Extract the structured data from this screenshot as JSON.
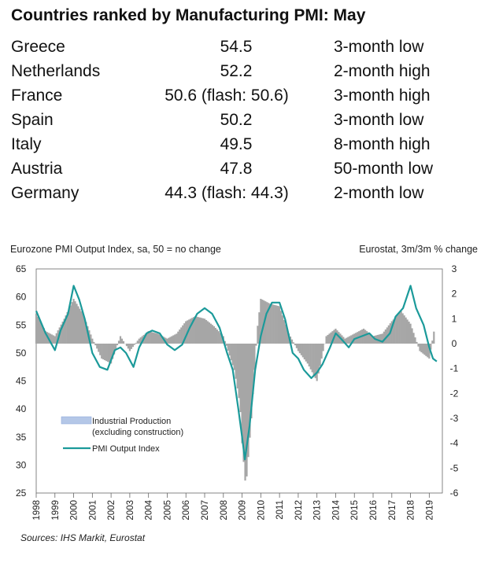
{
  "table": {
    "title": "Countries ranked by Manufacturing PMI: May",
    "rows": [
      {
        "country": "Greece",
        "value": "54.5",
        "change": "3-month low"
      },
      {
        "country": "Netherlands",
        "value": "52.2",
        "change": "2-month high"
      },
      {
        "country": "France",
        "value": "50.6 (flash: 50.6)",
        "change": "3-month high"
      },
      {
        "country": "Spain",
        "value": "50.2",
        "change": "3-month low"
      },
      {
        "country": "Italy",
        "value": "49.5",
        "change": "8-month high"
      },
      {
        "country": "Austria",
        "value": "47.8",
        "change": "50-month low"
      },
      {
        "country": "Germany",
        "value": "44.3 (flash: 44.3)",
        "change": "2-month low"
      }
    ]
  },
  "chart_data": {
    "type": "bar+line",
    "left_axis_title": "Eurozone PMI Output Index, sa, 50 = no change",
    "right_axis_title": "Eurostat, 3m/3m % change",
    "left_ylim": [
      25,
      65
    ],
    "left_ticks": [
      65,
      60,
      55,
      50,
      45,
      40,
      35,
      30,
      25
    ],
    "right_ylim": [
      -6,
      3
    ],
    "right_ticks": [
      3,
      2,
      1,
      0,
      -1,
      -2,
      -3,
      -4,
      -5,
      -6
    ],
    "x_tick_labels": [
      "1998",
      "1999",
      "2000",
      "2001",
      "2002",
      "2003",
      "2004",
      "2005",
      "2006",
      "2007",
      "2008",
      "2009",
      "2010",
      "2011",
      "2012",
      "2013",
      "2014",
      "2015",
      "2016",
      "2017",
      "2018",
      "2019"
    ],
    "legend": [
      "Industrial Production",
      "(excluding construction)",
      "PMI Output Index"
    ],
    "source": "Sources: IHS Markit, Eurostat",
    "colors": {
      "bars": "#a6a6a6",
      "line": "#1b9a9a",
      "legend_bar": "#b4c7e7"
    },
    "series": [
      {
        "name": "PMI Output Index",
        "axis": "left",
        "x": [
          1998.0,
          1998.5,
          1999.0,
          1999.3,
          1999.7,
          2000.0,
          2000.3,
          2000.6,
          2001.0,
          2001.4,
          2001.8,
          2002.2,
          2002.5,
          2002.8,
          2003.2,
          2003.5,
          2003.9,
          2004.2,
          2004.6,
          2005.0,
          2005.4,
          2005.8,
          2006.2,
          2006.6,
          2007.0,
          2007.4,
          2007.8,
          2008.2,
          2008.5,
          2008.8,
          2009.0,
          2009.15,
          2009.4,
          2009.7,
          2010.0,
          2010.3,
          2010.6,
          2011.0,
          2011.3,
          2011.7,
          2012.0,
          2012.3,
          2012.7,
          2013.0,
          2013.3,
          2013.7,
          2014.0,
          2014.3,
          2014.7,
          2015.0,
          2015.4,
          2015.8,
          2016.1,
          2016.5,
          2016.9,
          2017.2,
          2017.6,
          2018.0,
          2018.3,
          2018.7,
          2019.0,
          2019.2,
          2019.4
        ],
        "values": [
          57.5,
          53.5,
          50.5,
          54,
          57,
          62,
          59.5,
          56,
          50,
          47.5,
          47,
          50.5,
          51,
          50,
          47.5,
          51,
          53.5,
          54,
          53.5,
          51.5,
          50.5,
          51.5,
          54.5,
          57,
          58,
          57,
          54.5,
          50,
          47,
          40,
          35,
          31,
          37,
          47,
          53,
          57,
          59,
          59,
          56,
          50,
          49,
          47,
          45.5,
          46.5,
          48,
          51,
          53.5,
          52.5,
          51,
          52.5,
          53,
          53.5,
          52.5,
          52,
          53.5,
          56.5,
          58,
          62,
          58,
          55,
          51,
          49,
          48.5
        ]
      },
      {
        "name": "Industrial Production (excluding construction)",
        "axis": "right",
        "x": [
          1998.0,
          1998.5,
          1999.0,
          1999.5,
          2000.0,
          2000.5,
          2001.0,
          2001.5,
          2002.0,
          2002.5,
          2003.0,
          2003.5,
          2004.0,
          2004.5,
          2005.0,
          2005.5,
          2006.0,
          2006.5,
          2007.0,
          2007.5,
          2008.0,
          2008.3,
          2008.6,
          2008.9,
          2009.0,
          2009.2,
          2009.5,
          2009.8,
          2010.0,
          2010.5,
          2011.0,
          2011.5,
          2012.0,
          2012.5,
          2013.0,
          2013.5,
          2014.0,
          2014.5,
          2015.0,
          2015.5,
          2016.0,
          2016.5,
          2017.0,
          2017.5,
          2018.0,
          2018.5,
          2019.0,
          2019.3
        ],
        "values": [
          1.2,
          0.5,
          0.3,
          1.0,
          1.8,
          1.2,
          0.2,
          -0.6,
          -0.8,
          0.3,
          -0.3,
          0.2,
          0.5,
          0.4,
          0.2,
          0.4,
          0.9,
          1.1,
          1.0,
          0.7,
          0.3,
          -0.4,
          -1.1,
          -2.5,
          -4.0,
          -5.8,
          -3.0,
          0.5,
          1.8,
          1.6,
          1.5,
          0.4,
          -0.3,
          -0.8,
          -1.5,
          0.3,
          0.6,
          0.2,
          0.4,
          0.6,
          0.3,
          0.4,
          0.9,
          1.3,
          0.8,
          -0.3,
          -0.6,
          0.7
        ]
      }
    ]
  }
}
